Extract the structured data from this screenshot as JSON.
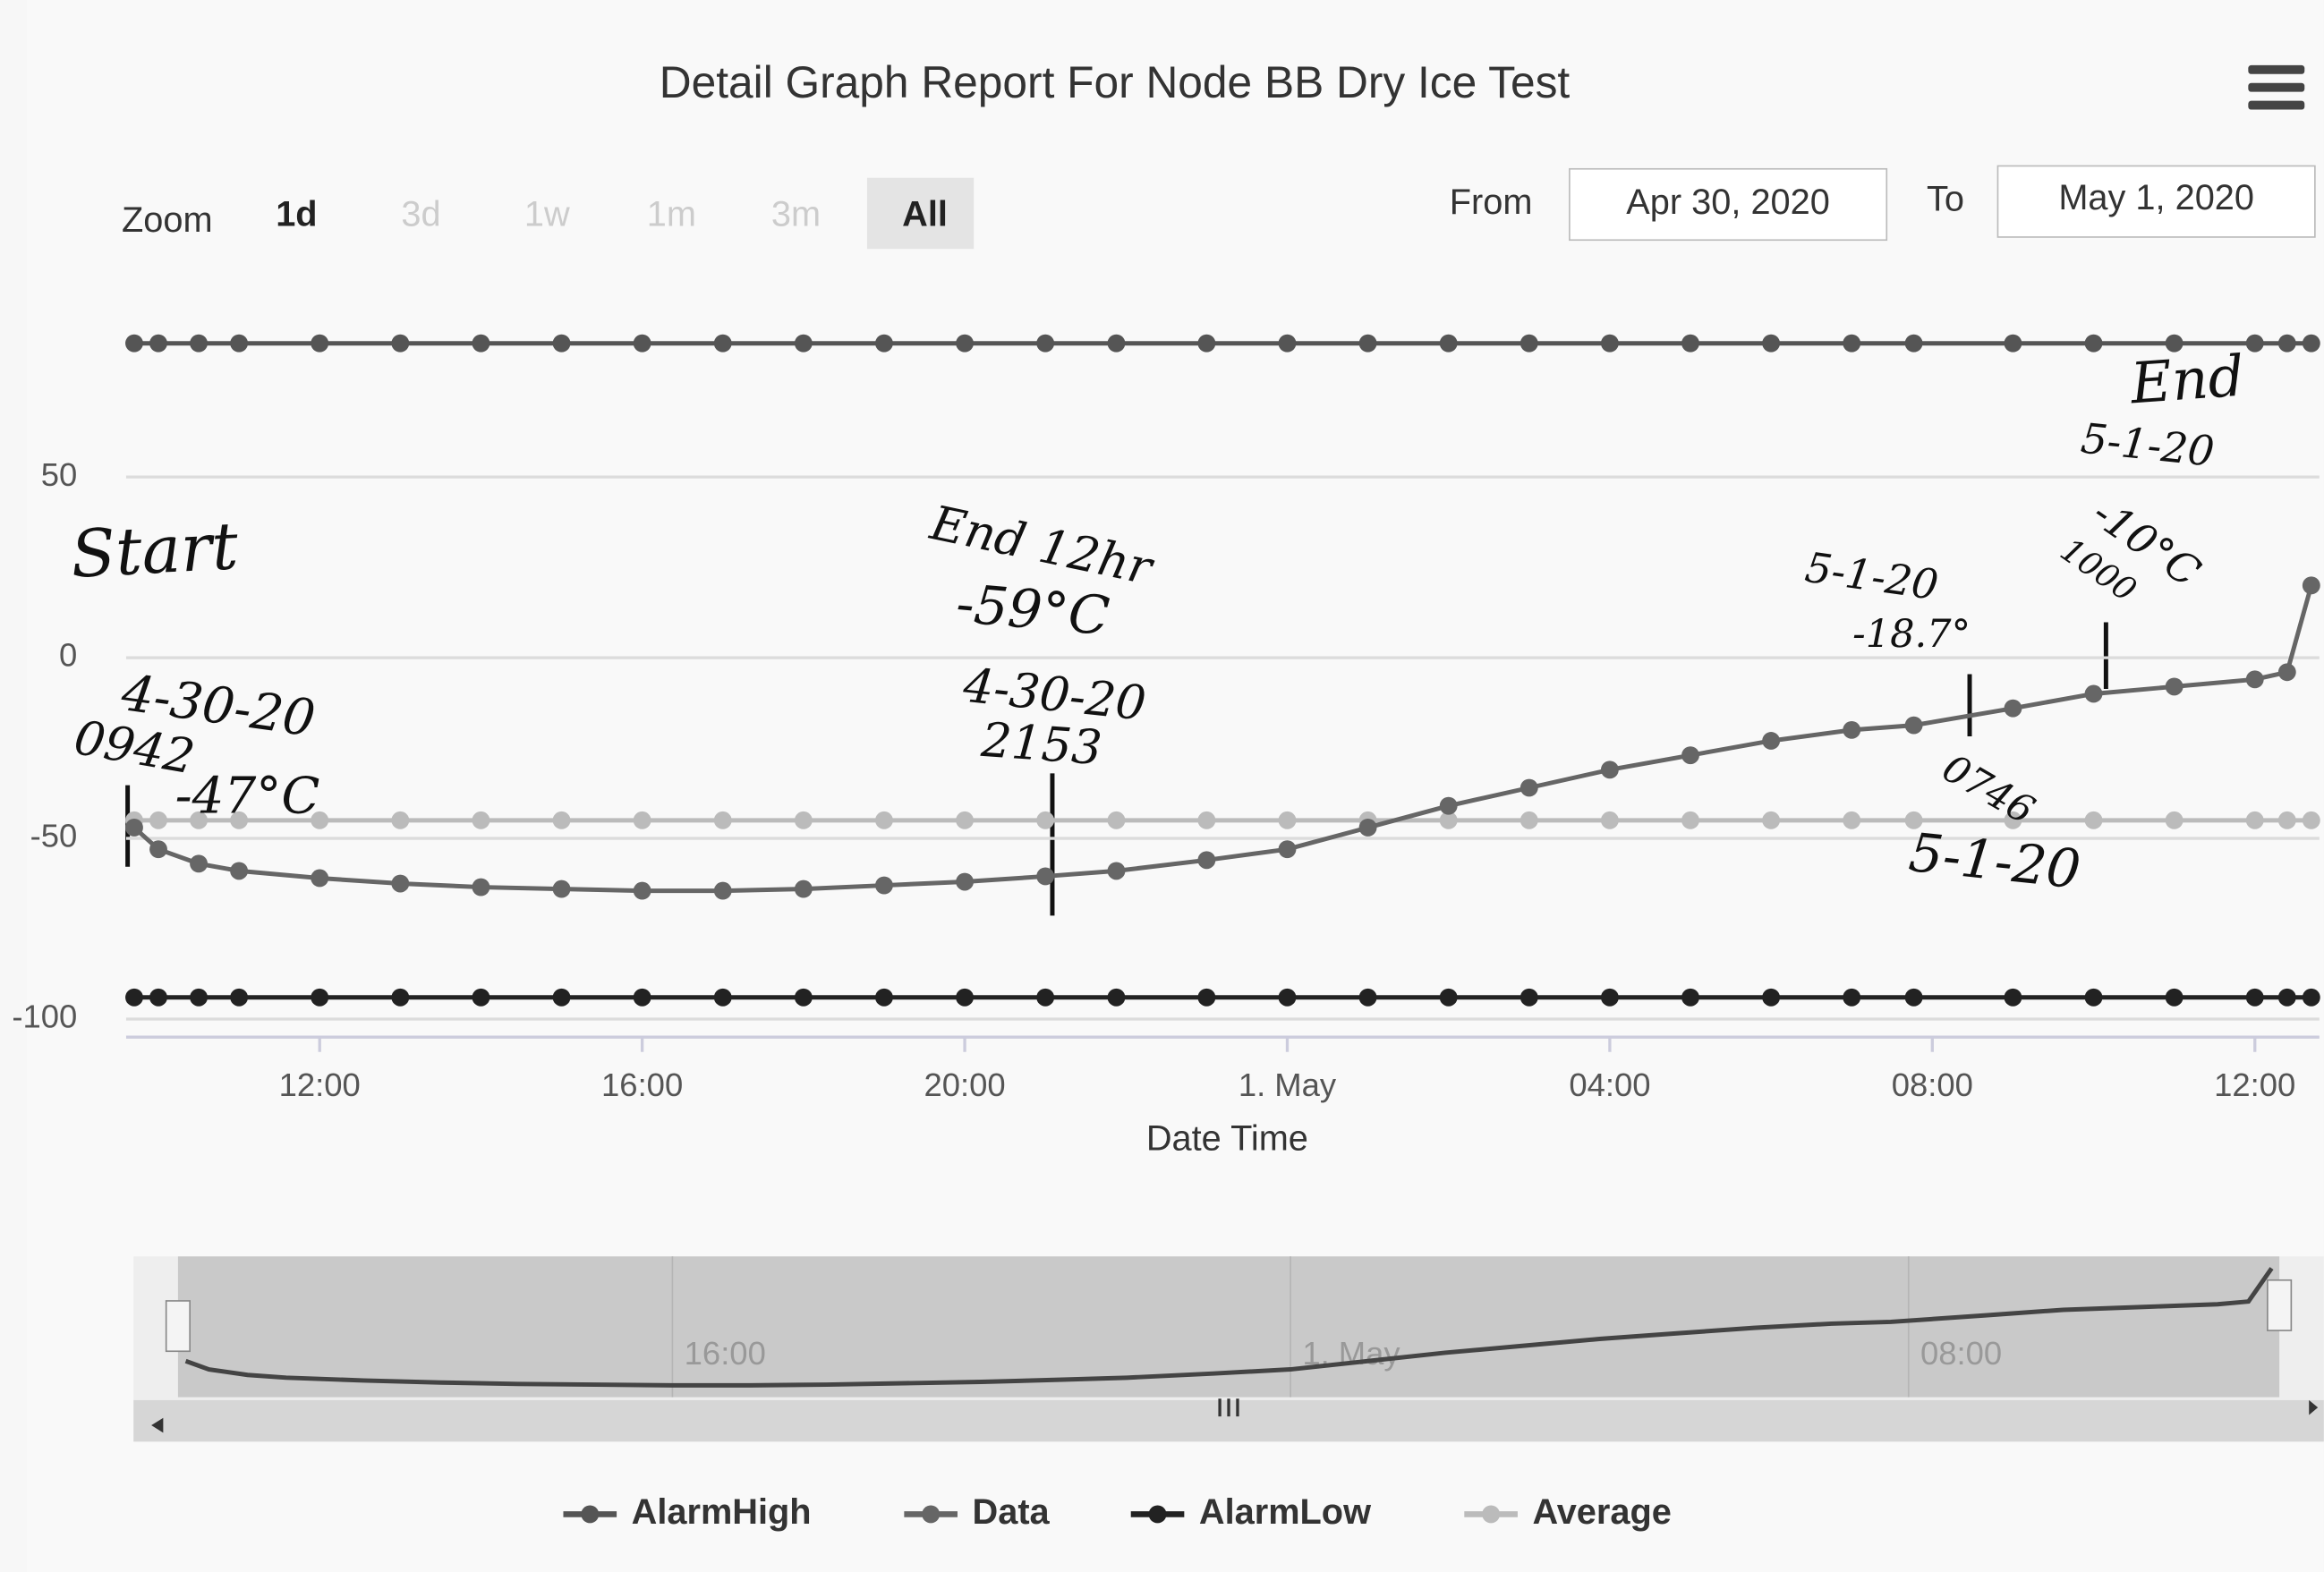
{
  "chart_data": {
    "type": "line",
    "title": "Detail Graph Report For Node BB Dry Ice Test",
    "x_title": "Date Time",
    "x": [
      9.7,
      10,
      10.5,
      11,
      12,
      13,
      14,
      15,
      16,
      17,
      18,
      19,
      20,
      21,
      21.88,
      23,
      24,
      25,
      26,
      27,
      28,
      29,
      30,
      31,
      31.77,
      33,
      34,
      35,
      36,
      36.4,
      36.7
    ],
    "series": [
      {
        "name": "AlarmHigh",
        "color": "#555555",
        "values": [
          87,
          87,
          87,
          87,
          87,
          87,
          87,
          87,
          87,
          87,
          87,
          87,
          87,
          87,
          87,
          87,
          87,
          87,
          87,
          87,
          87,
          87,
          87,
          87,
          87,
          87,
          87,
          87,
          87,
          87,
          87
        ]
      },
      {
        "name": "Data",
        "color": "#666666",
        "values": [
          -47,
          -53,
          -57,
          -59,
          -61,
          -62.5,
          -63.5,
          -64,
          -64.5,
          -64.5,
          -64,
          -63,
          -62,
          -60.5,
          -59,
          -56,
          -53,
          -47,
          -41,
          -36,
          -31,
          -27,
          -23,
          -20,
          -18.7,
          -14,
          -10,
          -8,
          -6,
          -4,
          20
        ]
      },
      {
        "name": "AlarmLow",
        "color": "#222222",
        "values": [
          -94,
          -94,
          -94,
          -94,
          -94,
          -94,
          -94,
          -94,
          -94,
          -94,
          -94,
          -94,
          -94,
          -94,
          -94,
          -94,
          -94,
          -94,
          -94,
          -94,
          -94,
          -94,
          -94,
          -94,
          -94,
          -94,
          -94,
          -94,
          -94,
          -94,
          -94
        ]
      },
      {
        "name": "Average",
        "color": "#bbbbbb",
        "values": [
          -45,
          -45,
          -45,
          -45,
          -45,
          -45,
          -45,
          -45,
          -45,
          -45,
          -45,
          -45,
          -45,
          -45,
          -45,
          -45,
          -45,
          -45,
          -45,
          -45,
          -45,
          -45,
          -45,
          -45,
          -45,
          -45,
          -45,
          -45,
          -45,
          -45,
          -45
        ]
      }
    ],
    "xlim": [
      9.6,
      36.8
    ],
    "xticks": [
      {
        "value": 12,
        "label": "12:00"
      },
      {
        "value": 16,
        "label": "16:00"
      },
      {
        "value": 20,
        "label": "20:00"
      },
      {
        "value": 24,
        "label": "1. May"
      },
      {
        "value": 28,
        "label": "04:00"
      },
      {
        "value": 32,
        "label": "08:00"
      },
      {
        "value": 36,
        "label": "12:00"
      }
    ],
    "ylim": [
      -105,
      100
    ],
    "yticks": [
      -100,
      -50,
      0,
      50
    ],
    "grid": true,
    "legend": "bottom"
  },
  "ui": {
    "zoom_label": "Zoom",
    "zoom_buttons": [
      "1d",
      "3d",
      "1w",
      "1m",
      "3m",
      "All"
    ],
    "from_label": "From",
    "from_value": "Apr 30, 2020",
    "to_label": "To",
    "to_value": "May 1, 2020"
  },
  "navigator": {
    "xticks": [
      {
        "value": 16,
        "label": "16:00"
      },
      {
        "value": 24,
        "label": "1. May"
      },
      {
        "value": 32,
        "label": "08:00"
      }
    ]
  },
  "annotations": [
    "Start",
    "4-30-20",
    "0942",
    "-47°C",
    "End 12hr",
    "-59°C",
    "4-30-20",
    "2153",
    "5-1-20",
    "-18.7°",
    "0746",
    "5-1-20",
    "End",
    "5-1-20",
    "-10°C",
    "1000"
  ]
}
